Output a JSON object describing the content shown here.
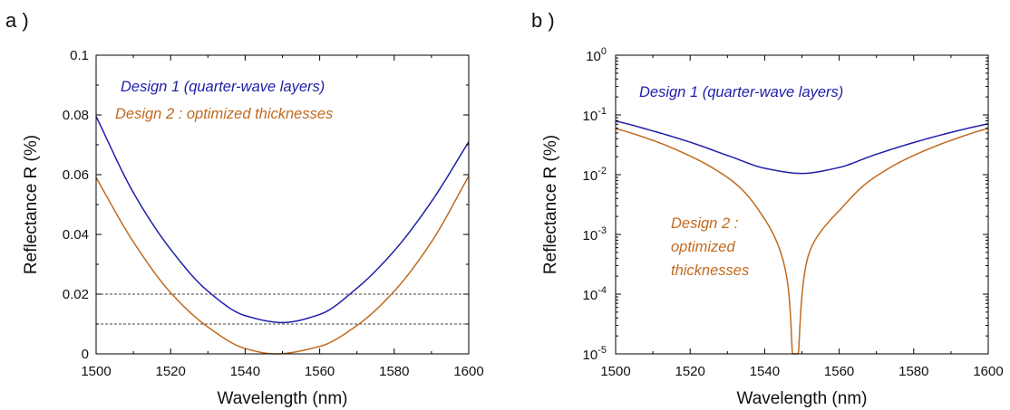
{
  "panels": [
    {
      "label": "a )"
    },
    {
      "label": "b )"
    }
  ],
  "chart_data": [
    {
      "type": "line",
      "xlabel": "Wavelength (nm)",
      "ylabel": "Reflectance R (%)",
      "xlim": [
        1500,
        1600
      ],
      "ylim": [
        0,
        0.1
      ],
      "yscale": "linear",
      "grid": false,
      "x_ticks": [
        "1500",
        "1520",
        "1540",
        "1560",
        "1580",
        "1600"
      ],
      "y_ticks": [
        "0",
        "0.02",
        "0.04",
        "0.06",
        "0.08",
        "0.1"
      ],
      "reference_lines": [
        0.02,
        0.01
      ],
      "series": [
        {
          "name": "Design 1 (quarter-wave layers)",
          "color": "#1f1fa8",
          "x": [
            1500,
            1510,
            1520,
            1530,
            1540,
            1550,
            1560,
            1570,
            1580,
            1590,
            1600
          ],
          "y": [
            0.0795,
            0.054,
            0.035,
            0.021,
            0.0128,
            0.0105,
            0.0132,
            0.022,
            0.0345,
            0.051,
            0.071
          ]
        },
        {
          "name": "Design 2 : optimized thicknesses",
          "color": "#c06a1e",
          "x": [
            1500,
            1510,
            1520,
            1530,
            1540,
            1548,
            1560,
            1570,
            1580,
            1590,
            1600
          ],
          "y": [
            0.059,
            0.0375,
            0.0205,
            0.009,
            0.0018,
            0.0,
            0.0025,
            0.0095,
            0.021,
            0.0375,
            0.0595
          ]
        }
      ]
    },
    {
      "type": "line",
      "xlabel": "Wavelength (nm)",
      "ylabel": "Reflectance R (%)",
      "xlim": [
        1500,
        1600
      ],
      "ylim": [
        1e-05,
        1
      ],
      "yscale": "log",
      "grid": false,
      "x_ticks": [
        "1500",
        "1520",
        "1540",
        "1560",
        "1580",
        "1600"
      ],
      "y_ticks": [
        {
          "base": "10",
          "exp": "0"
        },
        {
          "base": "10",
          "exp": "-1"
        },
        {
          "base": "10",
          "exp": "-2"
        },
        {
          "base": "10",
          "exp": "-3"
        },
        {
          "base": "10",
          "exp": "-4"
        },
        {
          "base": "10",
          "exp": "-5"
        }
      ],
      "annotations": [
        {
          "lines": [
            "Design 1 (quarter-wave layers)"
          ],
          "color": "#1f1fa8"
        },
        {
          "lines": [
            "Design 2 :",
            "optimized",
            "thicknesses"
          ],
          "color": "#c06a1e"
        }
      ],
      "series": [
        {
          "color": "#1f1fa8",
          "x": [
            1500,
            1510,
            1520,
            1530,
            1540,
            1550,
            1560,
            1570,
            1580,
            1590,
            1600
          ],
          "y": [
            0.079,
            0.054,
            0.035,
            0.021,
            0.0128,
            0.0105,
            0.0132,
            0.022,
            0.0345,
            0.051,
            0.071
          ]
        },
        {
          "color": "#c06a1e",
          "x": [
            1500,
            1510,
            1520,
            1530,
            1540,
            1546,
            1547.5,
            1549,
            1552,
            1560,
            1570,
            1580,
            1590,
            1600
          ],
          "y": [
            0.059,
            0.0375,
            0.0205,
            0.009,
            0.0018,
            0.00018,
            1e-05,
            1e-05,
            0.0005,
            0.0025,
            0.0095,
            0.021,
            0.0375,
            0.0595
          ]
        }
      ]
    }
  ]
}
